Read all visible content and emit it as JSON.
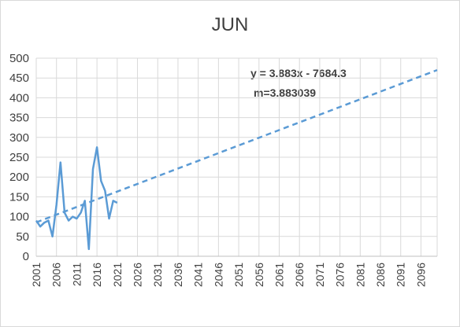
{
  "chart_data": {
    "type": "line",
    "title": "JUN",
    "xlabel": "",
    "ylabel": "",
    "xlim": [
      2001,
      2100
    ],
    "ylim": [
      0,
      500
    ],
    "y_ticks": [
      0,
      50,
      100,
      150,
      200,
      250,
      300,
      350,
      400,
      450,
      500
    ],
    "x_ticks": [
      "2001",
      "2006",
      "2011",
      "2016",
      "2021",
      "2026",
      "2031",
      "2036",
      "2041",
      "2046",
      "2051",
      "2056",
      "2061",
      "2066",
      "2071",
      "2076",
      "2081",
      "2086",
      "2091",
      "2096"
    ],
    "grid": true,
    "series": [
      {
        "color": "#5b9bd5",
        "x": [
          2001,
          2002,
          2003,
          2004,
          2005,
          2006,
          2007,
          2008,
          2009,
          2010,
          2011,
          2012,
          2013,
          2014,
          2015,
          2016,
          2017,
          2018,
          2019,
          2020,
          2021
        ],
        "y": [
          90,
          75,
          85,
          90,
          50,
          130,
          237,
          110,
          90,
          100,
          95,
          110,
          140,
          18,
          220,
          275,
          190,
          165,
          95,
          140,
          135
        ]
      }
    ],
    "trendline": {
      "slope": 3.883,
      "intercept": -7684.3,
      "x_start": 2001,
      "x_end": 2100,
      "color": "#5b9bd5",
      "style": "dashed"
    },
    "annotations": {
      "equation": "y = 3.883x - 7684.3",
      "slope_label": "m=3.883039"
    }
  }
}
